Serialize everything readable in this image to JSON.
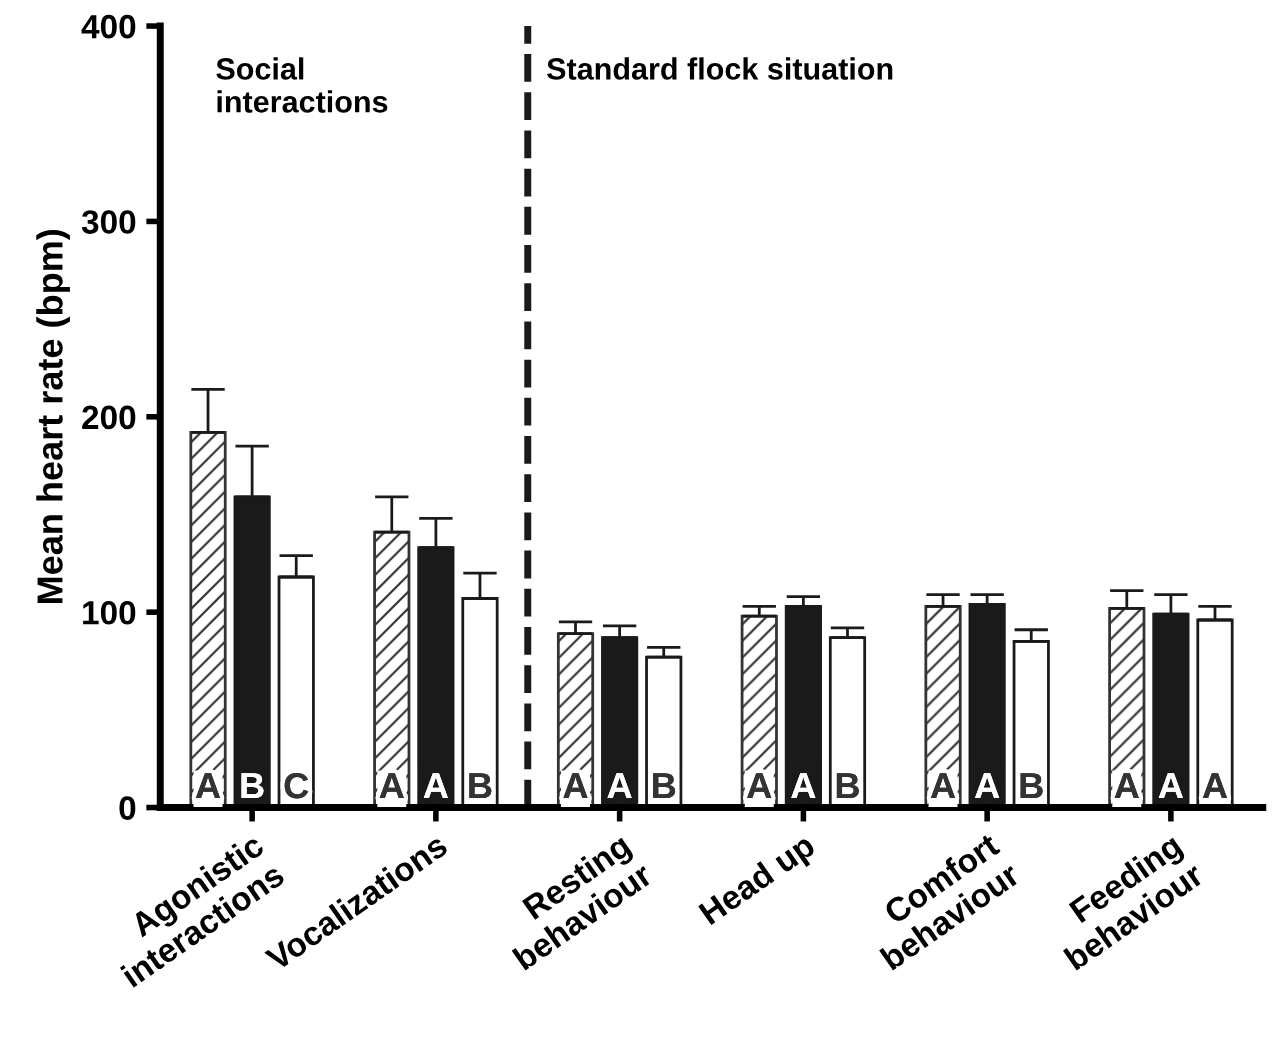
{
  "chart_data": {
    "type": "bar",
    "ylabel": "Mean heart rate (bpm)",
    "categories": [
      "Agonistic\ninteractions",
      "Vocalizations",
      "Resting\nbehaviour",
      "Head up",
      "Comfort\nbehaviour",
      "Feeding\nbehaviour"
    ],
    "series": [
      {
        "color": "#333333",
        "values": [
          192,
          141,
          89,
          98,
          103,
          102
        ],
        "errors": [
          [
            192,
            214
          ],
          [
            141,
            159
          ],
          [
            89,
            95
          ],
          [
            98,
            103
          ],
          [
            103,
            109
          ],
          [
            102,
            111
          ]
        ],
        "value_labels": [
          "A",
          "A",
          "A",
          "A",
          "A",
          "A"
        ]
      },
      {
        "color": "#1a1a1a",
        "values": [
          159,
          133,
          87,
          103,
          104,
          99
        ],
        "errors": [
          [
            159,
            185
          ],
          [
            133,
            148
          ],
          [
            87,
            93
          ],
          [
            103,
            108
          ],
          [
            104,
            109
          ],
          [
            99,
            109
          ]
        ],
        "value_labels": [
          "B",
          "A",
          "A",
          "A",
          "A",
          "A"
        ]
      },
      {
        "color": "#ffffff",
        "values": [
          118,
          107,
          77,
          87,
          85,
          96
        ],
        "errors": [
          [
            118,
            129
          ],
          [
            107,
            120
          ],
          [
            77,
            82
          ],
          [
            87,
            92
          ],
          [
            85,
            91
          ],
          [
            96,
            103
          ]
        ],
        "value_labels": [
          "C",
          "B",
          "B",
          "B",
          "B",
          "A"
        ]
      }
    ],
    "ylim": [
      0,
      400
    ],
    "yticks": [
      0,
      100,
      200,
      300,
      400
    ],
    "grid": false,
    "legend": false,
    "annotations": [
      "Social\ninteractions",
      "Standard flock situation"
    ]
  }
}
